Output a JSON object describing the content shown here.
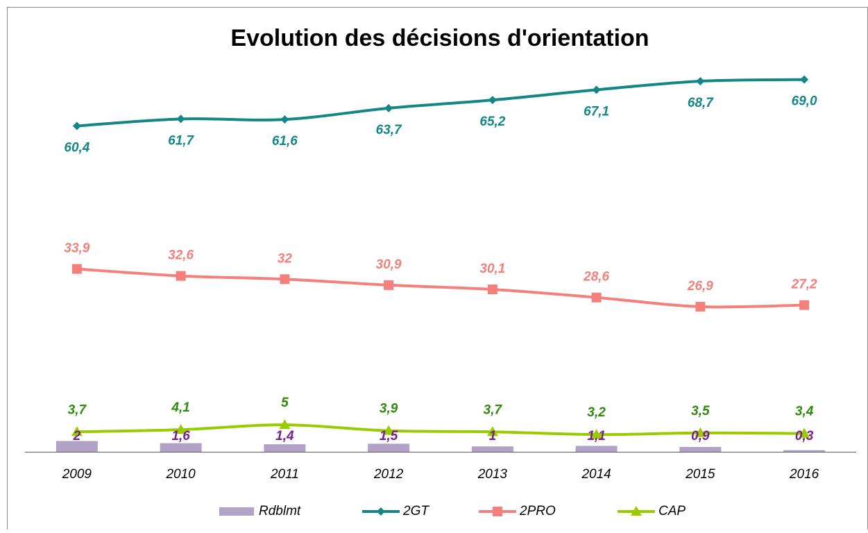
{
  "chart_data": {
    "type": "line",
    "title": "Evolution des décisions d'orientation",
    "categories": [
      "2009",
      "2010",
      "2011",
      "2012",
      "2013",
      "2014",
      "2015",
      "2016"
    ],
    "ylim": [
      0,
      75
    ],
    "series": [
      {
        "name": "Rdblmt",
        "kind": "bar",
        "color": "#b3a2c7",
        "label_color": "#7b1f8c",
        "values": [
          2,
          1.6,
          1.4,
          1.5,
          1,
          1.1,
          0.9,
          0.3
        ],
        "value_labels": [
          "2",
          "1,6",
          "1,4",
          "1,5",
          "1",
          "1,1",
          "0,9",
          "0,3"
        ]
      },
      {
        "name": "2GT",
        "kind": "line",
        "marker": "diamond",
        "color": "#138686",
        "label_color": "#138686",
        "values": [
          60.4,
          61.7,
          61.6,
          63.7,
          65.2,
          67.1,
          68.7,
          69.0
        ],
        "value_labels": [
          "60,4",
          "61,7",
          "61,6",
          "63,7",
          "65,2",
          "67,1",
          "68,7",
          "69,0"
        ]
      },
      {
        "name": "2PRO",
        "kind": "line",
        "marker": "square",
        "color": "#f4807c",
        "label_color": "#f4807c",
        "values": [
          33.9,
          32.6,
          32,
          30.9,
          30.1,
          28.6,
          26.9,
          27.2
        ],
        "value_labels": [
          "33,9",
          "32,6",
          "32",
          "30,9",
          "30,1",
          "28,6",
          "26,9",
          "27,2"
        ]
      },
      {
        "name": "CAP",
        "kind": "line",
        "marker": "triangle",
        "color": "#99cc00",
        "label_color": "#2e8b0a",
        "values": [
          3.7,
          4.1,
          5,
          3.9,
          3.7,
          3.2,
          3.5,
          3.4
        ],
        "value_labels": [
          "3,7",
          "4,1",
          "5",
          "3,9",
          "3,7",
          "3,2",
          "3,5",
          "3,4"
        ]
      }
    ]
  }
}
